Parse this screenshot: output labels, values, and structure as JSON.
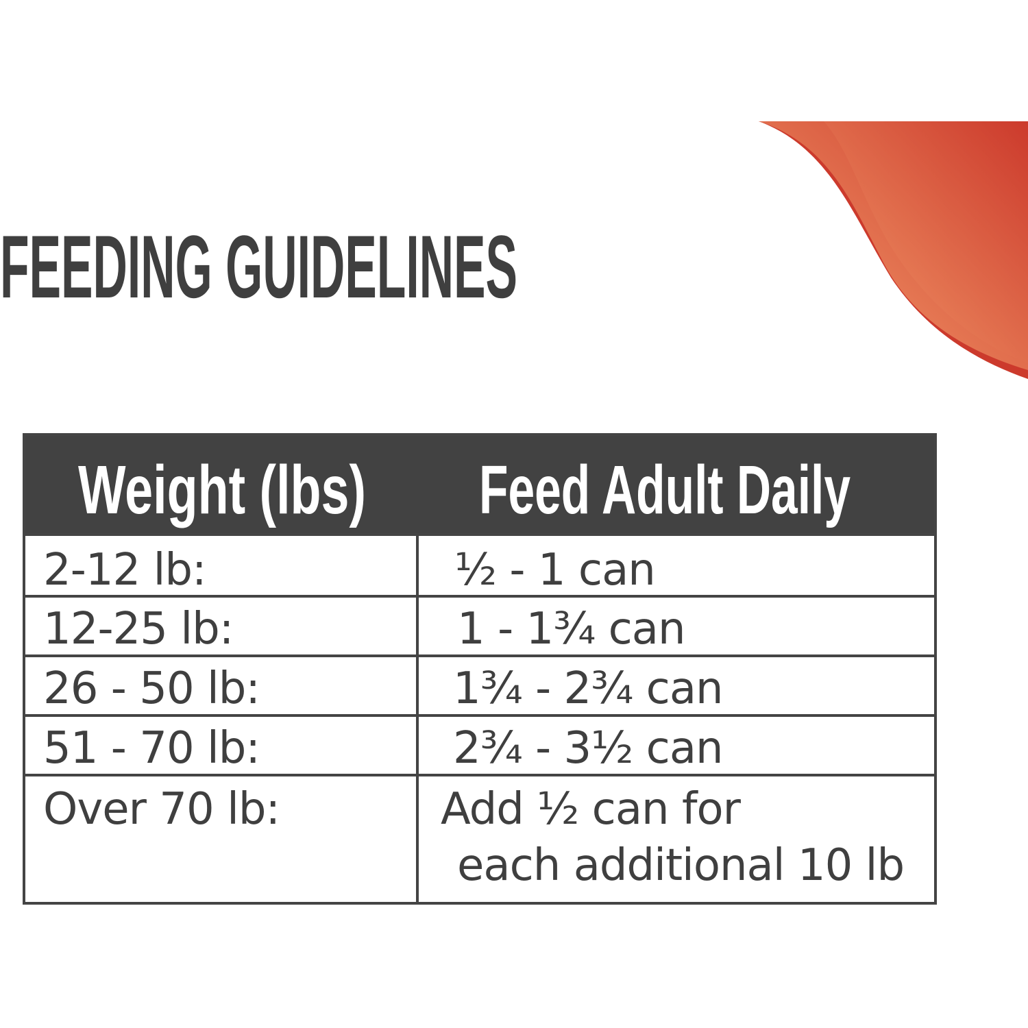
{
  "title": "FEEDING GUIDELINES",
  "colors": {
    "text": "#3f3f3f",
    "header_bg": "#424242",
    "swoosh_light": "#f6a26e",
    "swoosh_dark": "#cc3a2c"
  },
  "table": {
    "headers": [
      "Weight (lbs)",
      "Feed Adult Daily"
    ],
    "rows": [
      {
        "weight": "2-12 lb:",
        "amount": "½ - 1 can"
      },
      {
        "weight": "12-25 lb:",
        "amount": "1 - 1¾ can"
      },
      {
        "weight": "26 - 50 lb:",
        "amount": "1¾ - 2¾ can"
      },
      {
        "weight": "51 - 70 lb:",
        "amount": "2¾ - 3½ can"
      },
      {
        "weight": "Over 70 lb:",
        "amount": "Add ½ can for",
        "amount_line2": "each additional 10 lb"
      }
    ]
  }
}
